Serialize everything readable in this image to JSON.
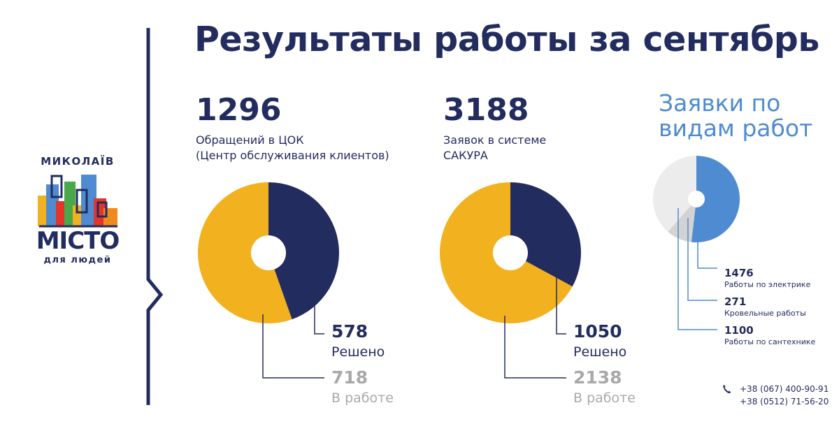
{
  "title": "Результаты работы за сентябрь",
  "logo": {
    "top_word": "МИКОЛАЇВ",
    "main_word": "МІСТО",
    "sub_word": "для людей"
  },
  "colors": {
    "navy": "#232c5e",
    "yellow": "#f2b11f",
    "blue": "#4e8bd0",
    "light_gray": "#ececec",
    "mid_gray": "#d3d3d3"
  },
  "stats": [
    {
      "total": "1296",
      "desc_line1": "Обращений в ЦОК",
      "desc_line2": "(Центр обслуживания клиентов)",
      "solved_value": "578",
      "solved_label": "Решено",
      "inwork_value": "718",
      "inwork_label": "В работе"
    },
    {
      "total": "3188",
      "desc_line1": "Заявок в системе",
      "desc_line2": "САКУРА",
      "solved_value": "1050",
      "solved_label": "Решено",
      "inwork_value": "2138",
      "inwork_label": "В работе"
    }
  ],
  "types": {
    "title_line1": "Заявки по",
    "title_line2": "видам работ",
    "items": [
      {
        "value": "1476",
        "label": "Работы по электрике"
      },
      {
        "value": "271",
        "label": "Кровельные работы"
      },
      {
        "value": "1100",
        "label": "Работы по сантехнике"
      }
    ]
  },
  "contacts": {
    "phone_icon": "phone-icon",
    "phone1": "+38 (067) 400-90-91",
    "phone2": "+38 (0512) 71-56-20"
  },
  "chart_data": [
    {
      "type": "pie",
      "categories": [
        "Решено",
        "В работе"
      ],
      "values": [
        578,
        718
      ],
      "colors": [
        "#232c5e",
        "#f2b11f"
      ]
    },
    {
      "type": "pie",
      "categories": [
        "Решено",
        "В работе"
      ],
      "values": [
        1050,
        2138
      ],
      "colors": [
        "#232c5e",
        "#f2b11f"
      ]
    },
    {
      "type": "pie",
      "title": "Заявки по видам работ",
      "categories": [
        "Работы по электрике",
        "Кровельные работы",
        "Работы по сантехнике"
      ],
      "values": [
        1476,
        271,
        1100
      ],
      "colors": [
        "#4e8bd0",
        "#d3d3d3",
        "#ececec"
      ]
    }
  ]
}
